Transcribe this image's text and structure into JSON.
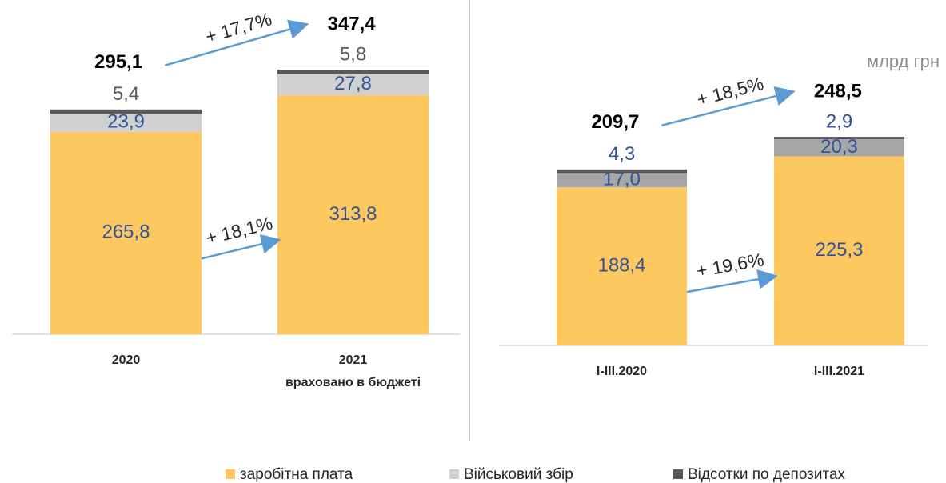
{
  "chart_data": [
    {
      "type": "bar",
      "stacked": true,
      "categories": [
        "2020",
        "2021"
      ],
      "x_sublabels": [
        null,
        "враховано в бюджеті"
      ],
      "series": [
        {
          "name": "заробітна плата",
          "color": "#fec861",
          "values": [
            265.8,
            313.8
          ],
          "value_labels": [
            "265,8",
            "313,8"
          ]
        },
        {
          "name": "Військовий збір",
          "color": "#d0d0d0",
          "values": [
            23.9,
            27.8
          ],
          "value_labels": [
            "23,9",
            "27,8"
          ]
        },
        {
          "name": "Відсотки по депозитах",
          "color": "#595959",
          "values": [
            5.4,
            5.8
          ],
          "value_labels": [
            "5,4",
            "5,8"
          ]
        }
      ],
      "totals": [
        295.1,
        347.4
      ],
      "total_labels": [
        "295,1",
        "347,4"
      ],
      "total_growth": "+ 17,7%",
      "first_series_growth": "+ 18,1%",
      "ylim": [
        0,
        360
      ]
    },
    {
      "type": "bar",
      "stacked": true,
      "categories": [
        "I-III.2020",
        "I-III.2021"
      ],
      "series": [
        {
          "color": "#fec861",
          "values": [
            188.4,
            225.3
          ],
          "value_labels": [
            "188,4",
            "225,3"
          ]
        },
        {
          "color": "#a6a6a6",
          "values": [
            17.0,
            20.3
          ],
          "value_labels": [
            "17,0",
            "20,3"
          ]
        },
        {
          "color": "#595959",
          "values": [
            4.3,
            2.9
          ],
          "value_labels": [
            "4,3",
            "2,9"
          ]
        }
      ],
      "totals": [
        209.7,
        248.5
      ],
      "total_labels": [
        "209,7",
        "248,5"
      ],
      "total_growth": "+ 18,5%",
      "first_series_growth": "+ 19,6%",
      "ylim": [
        0,
        300
      ]
    }
  ],
  "unit": "млрд грн"
}
